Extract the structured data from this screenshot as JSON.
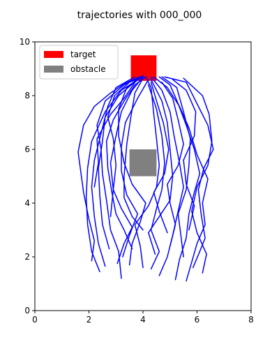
{
  "chart_data": {
    "type": "line",
    "title": "trajectories with 000_000",
    "xlim": [
      0,
      8
    ],
    "ylim": [
      0,
      10
    ],
    "x_ticks": [
      "0",
      "2",
      "4",
      "6",
      "8"
    ],
    "y_ticks": [
      "0",
      "2",
      "4",
      "6",
      "8",
      "10"
    ],
    "grid": false,
    "legend": {
      "placement": "top-left",
      "entries": [
        {
          "label": "target",
          "color": "#ff0000"
        },
        {
          "label": "obstacle",
          "color": "#808080"
        }
      ]
    },
    "target": {
      "x": [
        3.55,
        4.5
      ],
      "y": [
        8.55,
        9.5
      ],
      "color": "#ff0000"
    },
    "obstacle": {
      "x": [
        3.5,
        4.5
      ],
      "y": [
        5.0,
        6.0
      ],
      "color": "#808080"
    },
    "trajectory_color": "#0000ff",
    "trajectories": [
      [
        [
          2.1,
          1.85
        ],
        [
          2.2,
          2.6
        ],
        [
          2.0,
          3.4
        ],
        [
          1.8,
          4.4
        ],
        [
          1.6,
          5.9
        ],
        [
          1.8,
          6.9
        ],
        [
          2.2,
          7.6
        ],
        [
          2.8,
          8.1
        ],
        [
          3.4,
          8.5
        ],
        [
          3.9,
          8.7
        ]
      ],
      [
        [
          2.4,
          1.45
        ],
        [
          2.1,
          2.2
        ],
        [
          1.95,
          3.2
        ],
        [
          1.9,
          4.2
        ],
        [
          1.95,
          5.3
        ],
        [
          2.1,
          6.3
        ],
        [
          2.6,
          7.4
        ],
        [
          3.2,
          8.2
        ],
        [
          3.9,
          8.65
        ]
      ],
      [
        [
          2.6,
          1.65
        ],
        [
          2.35,
          2.5
        ],
        [
          2.2,
          3.5
        ],
        [
          2.1,
          4.6
        ],
        [
          2.2,
          5.6
        ],
        [
          2.5,
          6.8
        ],
        [
          2.7,
          7.6
        ],
        [
          3.0,
          8.3
        ],
        [
          3.7,
          8.7
        ]
      ],
      [
        [
          2.75,
          2.3
        ],
        [
          2.5,
          3.2
        ],
        [
          2.4,
          4.3
        ],
        [
          2.35,
          5.3
        ],
        [
          2.5,
          6.3
        ],
        [
          2.6,
          7.2
        ],
        [
          3.1,
          8.0
        ],
        [
          3.8,
          8.6
        ]
      ],
      [
        [
          3.2,
          1.2
        ],
        [
          3.1,
          2.2
        ],
        [
          2.8,
          3.0
        ],
        [
          2.65,
          4.1
        ],
        [
          2.5,
          5.1
        ],
        [
          2.45,
          6.0
        ],
        [
          2.3,
          6.9
        ],
        [
          2.6,
          7.8
        ],
        [
          3.3,
          8.4
        ],
        [
          3.9,
          8.7
        ]
      ],
      [
        [
          3.05,
          1.75
        ],
        [
          3.3,
          2.5
        ],
        [
          3.6,
          3.1
        ],
        [
          3.2,
          3.8
        ],
        [
          2.9,
          4.5
        ],
        [
          2.8,
          5.5
        ],
        [
          3.0,
          6.5
        ],
        [
          3.2,
          7.4
        ],
        [
          3.6,
          8.2
        ],
        [
          4.0,
          8.7
        ]
      ],
      [
        [
          3.25,
          2.0
        ],
        [
          3.5,
          2.8
        ],
        [
          3.8,
          3.6
        ],
        [
          3.4,
          4.3
        ],
        [
          3.2,
          5.2
        ],
        [
          3.2,
          6.1
        ],
        [
          3.35,
          7.0
        ],
        [
          3.8,
          7.9
        ],
        [
          4.2,
          8.6
        ]
      ],
      [
        [
          2.8,
          3.5
        ],
        [
          2.9,
          4.5
        ],
        [
          3.0,
          5.4
        ],
        [
          2.9,
          6.4
        ],
        [
          2.7,
          7.2
        ],
        [
          2.95,
          8.0
        ],
        [
          3.5,
          8.5
        ],
        [
          4.0,
          8.7
        ]
      ],
      [
        [
          3.5,
          1.7
        ],
        [
          3.6,
          2.5
        ],
        [
          3.9,
          3.3
        ],
        [
          4.1,
          4.0
        ],
        [
          3.6,
          4.7
        ],
        [
          3.3,
          5.5
        ],
        [
          3.1,
          6.5
        ],
        [
          3.1,
          7.5
        ],
        [
          3.4,
          8.3
        ],
        [
          3.9,
          8.7
        ]
      ],
      [
        [
          4.0,
          1.6
        ],
        [
          3.9,
          2.4
        ],
        [
          3.7,
          3.2
        ],
        [
          4.2,
          3.9
        ],
        [
          4.5,
          4.6
        ],
        [
          4.6,
          5.4
        ],
        [
          4.5,
          6.4
        ],
        [
          4.4,
          7.3
        ],
        [
          4.3,
          8.3
        ],
        [
          4.1,
          8.7
        ]
      ],
      [
        [
          4.3,
          1.55
        ],
        [
          4.6,
          2.2
        ],
        [
          4.3,
          3.0
        ],
        [
          4.5,
          3.8
        ],
        [
          4.7,
          4.5
        ],
        [
          4.8,
          5.5
        ],
        [
          4.7,
          6.5
        ],
        [
          4.5,
          7.5
        ],
        [
          4.2,
          8.4
        ]
      ],
      [
        [
          4.45,
          2.1
        ],
        [
          4.2,
          2.9
        ],
        [
          4.6,
          3.5
        ],
        [
          5.0,
          4.1
        ],
        [
          5.1,
          5.0
        ],
        [
          5.0,
          6.0
        ],
        [
          4.9,
          7.0
        ],
        [
          4.7,
          7.8
        ],
        [
          4.3,
          8.6
        ]
      ],
      [
        [
          4.6,
          1.3
        ],
        [
          4.9,
          2.0
        ],
        [
          5.1,
          2.8
        ],
        [
          5.3,
          3.7
        ],
        [
          5.5,
          4.6
        ],
        [
          5.35,
          5.5
        ],
        [
          5.15,
          6.5
        ],
        [
          5.0,
          7.4
        ],
        [
          4.7,
          8.2
        ],
        [
          4.3,
          8.7
        ]
      ],
      [
        [
          5.2,
          1.15
        ],
        [
          5.35,
          1.9
        ],
        [
          5.6,
          2.7
        ],
        [
          5.7,
          3.6
        ],
        [
          5.9,
          4.4
        ],
        [
          6.1,
          5.1
        ],
        [
          5.9,
          6.0
        ],
        [
          5.6,
          6.9
        ],
        [
          5.3,
          7.7
        ],
        [
          5.0,
          8.4
        ],
        [
          4.6,
          8.7
        ]
      ],
      [
        [
          5.6,
          1.1
        ],
        [
          5.8,
          1.8
        ],
        [
          6.0,
          2.5
        ],
        [
          6.3,
          3.2
        ],
        [
          6.2,
          4.0
        ],
        [
          6.4,
          4.9
        ],
        [
          6.0,
          5.8
        ],
        [
          5.7,
          6.8
        ],
        [
          5.35,
          7.6
        ],
        [
          4.9,
          8.3
        ],
        [
          4.4,
          8.7
        ]
      ],
      [
        [
          5.85,
          1.6
        ],
        [
          6.1,
          2.2
        ],
        [
          6.3,
          2.7
        ],
        [
          6.15,
          3.6
        ],
        [
          6.05,
          4.5
        ],
        [
          6.25,
          5.3
        ],
        [
          6.6,
          6.0
        ],
        [
          6.4,
          6.9
        ],
        [
          6.0,
          7.7
        ],
        [
          5.6,
          8.5
        ],
        [
          4.8,
          8.7
        ]
      ],
      [
        [
          6.2,
          1.4
        ],
        [
          6.35,
          2.1
        ],
        [
          6.0,
          2.9
        ],
        [
          5.8,
          3.7
        ],
        [
          6.0,
          4.6
        ],
        [
          6.4,
          5.4
        ],
        [
          6.55,
          6.3
        ],
        [
          6.45,
          7.3
        ],
        [
          6.2,
          8.0
        ],
        [
          5.5,
          8.65
        ]
      ],
      [
        [
          5.5,
          2.0
        ],
        [
          5.4,
          2.8
        ],
        [
          5.3,
          3.6
        ],
        [
          5.6,
          4.5
        ],
        [
          5.7,
          5.4
        ],
        [
          5.75,
          6.4
        ],
        [
          5.5,
          7.4
        ],
        [
          5.25,
          8.3
        ],
        [
          4.7,
          8.7
        ]
      ],
      [
        [
          5.0,
          2.4
        ],
        [
          5.2,
          3.2
        ],
        [
          5.0,
          4.0
        ],
        [
          4.9,
          4.7
        ],
        [
          5.3,
          5.4
        ],
        [
          5.5,
          6.2
        ],
        [
          5.3,
          7.1
        ],
        [
          5.1,
          7.9
        ],
        [
          4.7,
          8.5
        ]
      ],
      [
        [
          4.9,
          2.9
        ],
        [
          4.6,
          3.7
        ],
        [
          4.4,
          4.4
        ],
        [
          4.8,
          5.1
        ],
        [
          4.95,
          6.0
        ],
        [
          4.75,
          7.0
        ],
        [
          4.5,
          7.8
        ],
        [
          4.3,
          8.5
        ]
      ],
      [
        [
          2.2,
          4.6
        ],
        [
          2.35,
          5.5
        ],
        [
          2.3,
          6.4
        ],
        [
          2.8,
          7.3
        ],
        [
          3.3,
          7.9
        ],
        [
          3.7,
          8.5
        ],
        [
          4.0,
          8.75
        ]
      ],
      [
        [
          5.7,
          3.0
        ],
        [
          5.9,
          3.9
        ],
        [
          5.6,
          4.7
        ],
        [
          5.5,
          5.6
        ],
        [
          5.9,
          6.5
        ],
        [
          5.95,
          7.4
        ],
        [
          5.6,
          8.2
        ],
        [
          5.1,
          8.6
        ]
      ],
      [
        [
          4.0,
          3.0
        ],
        [
          3.6,
          3.5
        ],
        [
          3.3,
          4.2
        ],
        [
          3.3,
          5.0
        ],
        [
          3.4,
          6.2
        ],
        [
          3.55,
          7.2
        ],
        [
          3.7,
          8.1
        ],
        [
          4.0,
          8.65
        ]
      ],
      [
        [
          3.6,
          2.3
        ],
        [
          3.3,
          3.0
        ],
        [
          3.0,
          3.6
        ],
        [
          2.85,
          4.4
        ],
        [
          2.7,
          5.3
        ],
        [
          2.65,
          6.3
        ],
        [
          2.9,
          7.1
        ],
        [
          3.3,
          7.8
        ],
        [
          3.7,
          8.4
        ],
        [
          4.1,
          8.7
        ]
      ]
    ]
  }
}
